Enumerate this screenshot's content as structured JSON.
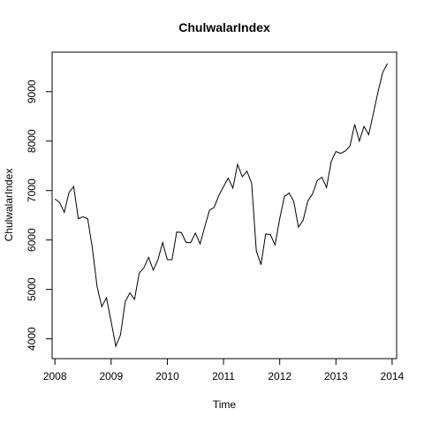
{
  "chart_data": {
    "type": "line",
    "title": "ChulwalarIndex",
    "xlabel": "Time",
    "ylabel": "ChulwalarIndex",
    "xlim": [
      2007.95,
      2014.08
    ],
    "ylim": [
      3600,
      9800
    ],
    "x_ticks": [
      2008,
      2009,
      2010,
      2011,
      2012,
      2013,
      2014
    ],
    "y_ticks": [
      4000,
      5000,
      6000,
      7000,
      8000,
      9000
    ],
    "grid": false,
    "series": [
      {
        "x_start": 2008,
        "frequency": 12,
        "color": "#000000",
        "values": [
          6830,
          6760,
          6560,
          6960,
          7080,
          6430,
          6470,
          6430,
          5830,
          5060,
          4650,
          4830,
          4350,
          3850,
          4080,
          4750,
          4930,
          4800,
          5330,
          5440,
          5650,
          5390,
          5600,
          5950,
          5600,
          5600,
          6160,
          6150,
          5950,
          5950,
          6140,
          5920,
          6270,
          6600,
          6660,
          6900,
          7080,
          7250,
          7050,
          7530,
          7280,
          7390,
          7150,
          5780,
          5500,
          6120,
          6110,
          5900,
          6430,
          6880,
          6950,
          6780,
          6260,
          6400,
          6790,
          6930,
          7200,
          7270,
          7060,
          7590,
          7790,
          7750,
          7800,
          7900,
          8340,
          8000,
          8300,
          8130,
          8560,
          9000,
          9390,
          9570
        ]
      }
    ]
  }
}
